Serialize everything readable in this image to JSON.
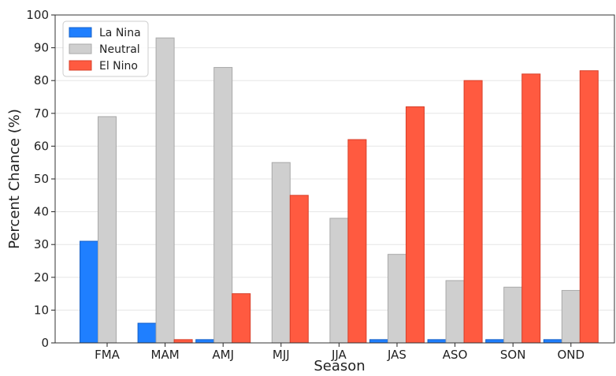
{
  "chart_data": {
    "type": "bar",
    "title": "",
    "xlabel": "Season",
    "ylabel": "Percent Chance (%)",
    "ylim": [
      0,
      100
    ],
    "yticks": [
      "0",
      "10",
      "20",
      "30",
      "40",
      "50",
      "60",
      "70",
      "80",
      "90",
      "100"
    ],
    "grid": "horizontal",
    "legend_position": "top-left",
    "categories": [
      "FMA",
      "MAM",
      "AMJ",
      "MJJ",
      "JJA",
      "JAS",
      "ASO",
      "SON",
      "OND"
    ],
    "series": [
      {
        "name": "La Nina",
        "color": "#1f7fff",
        "values": [
          31,
          6,
          1,
          0,
          0,
          1,
          1,
          1,
          1
        ]
      },
      {
        "name": "Neutral",
        "color": "#cfcfcf",
        "values": [
          69,
          93,
          84,
          55,
          38,
          27,
          19,
          17,
          16
        ]
      },
      {
        "name": "El Nino",
        "color": "#ff5a40",
        "values": [
          0,
          1,
          15,
          45,
          62,
          72,
          80,
          82,
          83
        ]
      }
    ]
  }
}
